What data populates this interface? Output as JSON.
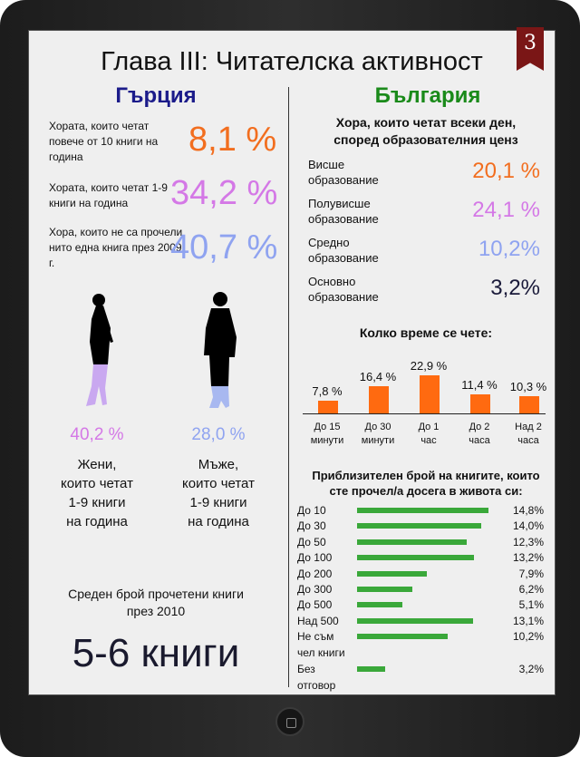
{
  "page_number": "3",
  "title": "Глава III: Читателска активност",
  "greece": {
    "heading": "Гърция",
    "stats": [
      {
        "label": "Хората, които четат повече от 10 книги на година",
        "value": "8,1 %",
        "color": "#f26e1f"
      },
      {
        "label": "Хората, които четат 1-9 книги на година",
        "value": "34,2 %",
        "color": "#d478e6"
      },
      {
        "label": "Хора, които не са прочели нито една книга през 2009 г.",
        "value": "40,7 %",
        "color": "#8fa3f0"
      }
    ],
    "women": {
      "pct": "40,2 %",
      "pct_color": "#d478e6",
      "caption": [
        "Жени,",
        "които четат",
        "1-9 книги",
        "на година"
      ],
      "boot_color": "#c9a8f0"
    },
    "men": {
      "pct": "28,0 %",
      "pct_color": "#8fa3f0",
      "caption": [
        "Мъже,",
        "които четат",
        "1-9 книги",
        "на година"
      ],
      "boot_color": "#a8b8f0"
    },
    "avg_label": [
      "Среден брой прочетени книги",
      "през 2010"
    ],
    "avg_value": "5-6 книги"
  },
  "bulgaria": {
    "heading": "България",
    "edu_title": [
      "Хора, които четат всеки ден,",
      "според образователния ценз"
    ],
    "edu": [
      {
        "label": [
          "Висше",
          "образование"
        ],
        "value": "20,1 %",
        "color": "#f26e1f"
      },
      {
        "label": [
          "Полувисше",
          "образование"
        ],
        "value": "24,1 %",
        "color": "#d478e6"
      },
      {
        "label": [
          "Средно",
          "образование"
        ],
        "value": "10,2%",
        "color": "#8fa3f0"
      },
      {
        "label": [
          "Основно",
          "образование"
        ],
        "value": "3,2%",
        "color": "#1a1a3a"
      }
    ],
    "time_title": "Колко време се чете:",
    "books_title": [
      "Приблизителен брой на книгите, които",
      "сте прочел/а досега в живота си:"
    ]
  },
  "chart_data": [
    {
      "type": "bar",
      "title": "Колко време се чете:",
      "categories": [
        "До 15 минути",
        "До 30 минути",
        "До 1 час",
        "До 2 часа",
        "Над 2 часа"
      ],
      "category_lines": [
        [
          "До 15",
          "минути"
        ],
        [
          "До 30",
          "минути"
        ],
        [
          "До 1",
          "час"
        ],
        [
          "До 2",
          "часа"
        ],
        [
          "Над 2",
          "часа"
        ]
      ],
      "values": [
        7.8,
        16.4,
        22.9,
        11.4,
        10.3
      ],
      "value_labels": [
        "7,8 %",
        "16,4 %",
        "22,9 %",
        "11,4 %",
        "10,3 %"
      ],
      "color": "#ff6a10"
    },
    {
      "type": "bar",
      "orientation": "horizontal",
      "title": "Приблизителен брой на книгите, които сте прочел/а досега в живота си:",
      "categories": [
        "До 10",
        "До 30",
        "До 50",
        "До 100",
        "До 200",
        "До 300",
        "До 500",
        "Над 500",
        "Не съм чел книги",
        "Без отговор"
      ],
      "category_lines": [
        [
          "До 10"
        ],
        [
          "До 30"
        ],
        [
          "До 50"
        ],
        [
          "До 100"
        ],
        [
          "До 200"
        ],
        [
          "До 300"
        ],
        [
          "До 500"
        ],
        [
          "Над 500"
        ],
        [
          "Не съм",
          "чел книги"
        ],
        [
          "Без",
          "отговор"
        ]
      ],
      "values": [
        14.8,
        14.0,
        12.3,
        13.2,
        7.9,
        6.2,
        5.1,
        13.1,
        10.2,
        3.2
      ],
      "value_labels": [
        "14,8%",
        "14,0%",
        "12,3%",
        "13,2%",
        "7,9%",
        "6,2%",
        "5,1%",
        "13,1%",
        "10,2%",
        "3,2%"
      ],
      "color": "#3aa83a"
    }
  ]
}
